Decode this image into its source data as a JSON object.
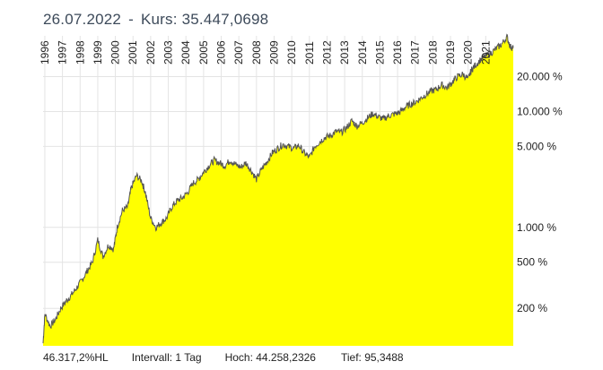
{
  "header": {
    "date": "26.07.2022",
    "separator": "-",
    "kurs_label": "Kurs:",
    "kurs_value": "35.447,0698"
  },
  "footer": {
    "performance": "46.317,2%HL",
    "interval": "Intervall: 1 Tag",
    "high": "Hoch: 44.258,2326",
    "low": "Tief: 95,3488"
  },
  "chart_data": {
    "type": "area",
    "scale": "log",
    "fill_color": "#ffff00",
    "line_color": "#555555",
    "grid": true,
    "x_tick_labels": [
      "1996",
      "1997",
      "1998",
      "1999",
      "2000",
      "2001",
      "2002",
      "2003",
      "2004",
      "2005",
      "2006",
      "2007",
      "2008",
      "2009",
      "2010",
      "2011",
      "2012",
      "2013",
      "2014",
      "2015",
      "2016",
      "2017",
      "2018",
      "2019",
      "2020",
      "2021"
    ],
    "y_tick_values": [
      200,
      500,
      1000,
      5000,
      10000,
      20000
    ],
    "y_tick_labels": [
      "200 %",
      "500 %",
      "1.000 %",
      "5.000 %",
      "10.000 %",
      "20.000 %"
    ],
    "x": [
      1995.9,
      1996.0,
      1996.3,
      1996.6,
      1996.9,
      1997.2,
      1997.5,
      1997.8,
      1998.1,
      1998.4,
      1998.7,
      1999.0,
      1999.3,
      1999.6,
      1999.9,
      2000.1,
      2000.4,
      2000.7,
      2000.9,
      2001.2,
      2001.5,
      2001.7,
      2002.0,
      2002.3,
      2002.6,
      2002.9,
      2003.2,
      2003.5,
      2003.8,
      2004.1,
      2004.4,
      2004.7,
      2005.0,
      2005.3,
      2005.6,
      2005.9,
      2006.2,
      2006.5,
      2006.8,
      2007.1,
      2007.4,
      2007.7,
      2008.0,
      2008.3,
      2008.6,
      2008.9,
      2009.2,
      2009.5,
      2009.8,
      2010.1,
      2010.4,
      2010.7,
      2011.0,
      2011.3,
      2011.6,
      2011.9,
      2012.2,
      2012.5,
      2012.8,
      2013.1,
      2013.4,
      2013.7,
      2014.0,
      2014.3,
      2014.6,
      2014.9,
      2015.2,
      2015.5,
      2015.8,
      2016.1,
      2016.4,
      2016.7,
      2017.0,
      2017.3,
      2017.6,
      2017.9,
      2018.2,
      2018.5,
      2018.8,
      2019.1,
      2019.4,
      2019.7,
      2020.0,
      2020.2,
      2020.4,
      2020.7,
      2021.0,
      2021.3,
      2021.6,
      2021.9,
      2022.2,
      2022.4,
      2022.56
    ],
    "values": [
      100,
      180,
      140,
      160,
      200,
      230,
      260,
      300,
      350,
      420,
      500,
      780,
      560,
      700,
      650,
      1000,
      1400,
      1500,
      2200,
      2800,
      2500,
      2000,
      1200,
      1000,
      1100,
      1200,
      1500,
      1700,
      1800,
      2000,
      2400,
      2600,
      3000,
      3400,
      3800,
      3600,
      3400,
      3800,
      3500,
      3300,
      3600,
      3100,
      2600,
      3200,
      3700,
      4400,
      4800,
      5200,
      5000,
      4800,
      5100,
      4400,
      4000,
      5000,
      5500,
      6000,
      6200,
      6700,
      6600,
      7200,
      8300,
      7500,
      8000,
      8800,
      9600,
      9000,
      8600,
      9200,
      9500,
      9800,
      10800,
      11500,
      12000,
      13000,
      14000,
      15000,
      15500,
      17000,
      16000,
      18000,
      20000,
      21000,
      19000,
      23000,
      25000,
      28000,
      30000,
      32000,
      35000,
      38000,
      44258,
      36000,
      35447
    ]
  }
}
